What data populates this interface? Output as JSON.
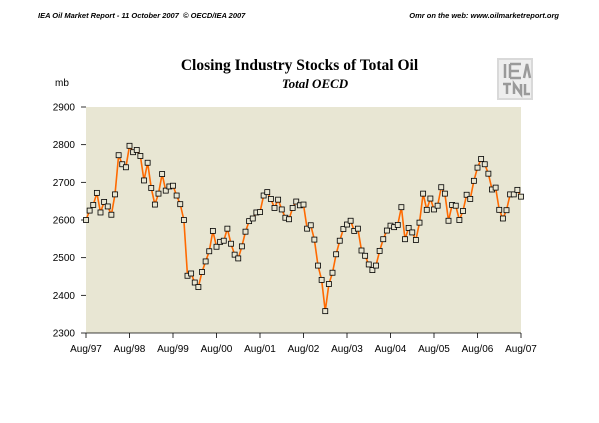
{
  "header": {
    "left": "IEA Oil Market Report - 11 October 2007",
    "middle": "© OECD/IEA 2007",
    "right": "Omr on the web: www.oilmarketreport.org"
  },
  "logo": {
    "name": "iea-logo"
  },
  "colors": {
    "plot_bg": "#e8e6d3",
    "line": "#ff6a00",
    "marker_fill": "#e8e6d3",
    "marker_stroke": "#000000"
  },
  "chart_data": {
    "type": "line",
    "title": "Closing Industry Stocks of Total Oil",
    "subtitle": "Total OECD",
    "ylabel": "mb",
    "xlabel": "",
    "ylim": [
      2300,
      2900
    ],
    "yticks": [
      2300,
      2400,
      2500,
      2600,
      2700,
      2800,
      2900
    ],
    "x_ticks": [
      "Aug/97",
      "Aug/98",
      "Aug/99",
      "Aug/00",
      "Aug/01",
      "Aug/02",
      "Aug/03",
      "Aug/04",
      "Aug/05",
      "Aug/06",
      "Aug/07"
    ],
    "x_range_months": [
      0,
      120
    ],
    "grid": false,
    "series": [
      {
        "values": [
          2600,
          2625,
          2640,
          2672,
          2620,
          2648,
          2636,
          2614,
          2668,
          2772,
          2748,
          2740,
          2797,
          2780,
          2786,
          2770,
          2705,
          2752,
          2685,
          2641,
          2670,
          2722,
          2678,
          2689,
          2691,
          2665,
          2642,
          2600,
          2452,
          2458,
          2434,
          2422,
          2462,
          2490,
          2517,
          2571,
          2529,
          2542,
          2545,
          2577,
          2537,
          2508,
          2498,
          2530,
          2569,
          2597,
          2604,
          2620,
          2621,
          2665,
          2674,
          2656,
          2632,
          2654,
          2628,
          2606,
          2602,
          2632,
          2649,
          2639,
          2641,
          2577,
          2586,
          2548,
          2479,
          2441,
          2358,
          2430,
          2460,
          2509,
          2545,
          2576,
          2588,
          2598,
          2571,
          2577,
          2519,
          2505,
          2482,
          2467,
          2479,
          2518,
          2549,
          2572,
          2585,
          2581,
          2587,
          2634,
          2549,
          2579,
          2567,
          2547,
          2593,
          2670,
          2627,
          2657,
          2628,
          2638,
          2687,
          2670,
          2598,
          2640,
          2638,
          2600,
          2624,
          2667,
          2656,
          2704,
          2739,
          2762,
          2748,
          2723,
          2681,
          2686,
          2627,
          2604,
          2626,
          2668,
          2668,
          2680,
          2662
        ]
      }
    ]
  }
}
